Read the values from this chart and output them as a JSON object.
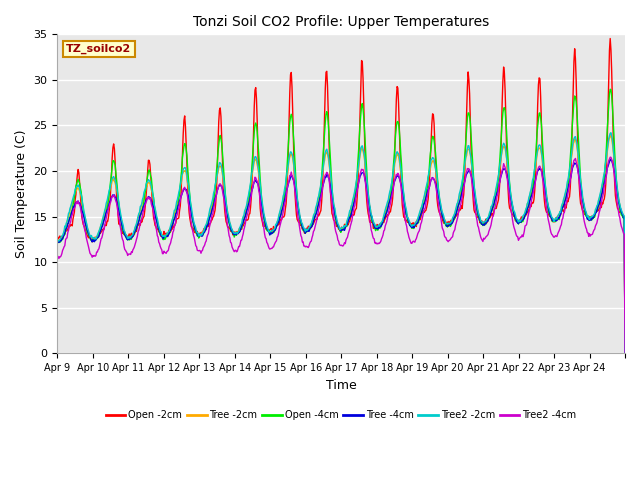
{
  "title": "Tonzi Soil CO2 Profile: Upper Temperatures",
  "xlabel": "Time",
  "ylabel": "Soil Temperature (C)",
  "ylim": [
    0,
    35
  ],
  "yticks": [
    0,
    5,
    10,
    15,
    20,
    25,
    30,
    35
  ],
  "annotation_text": "TZ_soilco2",
  "annotation_bg": "#ffffcc",
  "annotation_border": "#cc8800",
  "plot_bg": "#e8e8e8",
  "series": [
    {
      "label": "Open -2cm",
      "color": "#ff0000"
    },
    {
      "label": "Tree -2cm",
      "color": "#ffaa00"
    },
    {
      "label": "Open -4cm",
      "color": "#00ee00"
    },
    {
      "label": "Tree -4cm",
      "color": "#0000dd"
    },
    {
      "label": "Tree2 -2cm",
      "color": "#00cccc"
    },
    {
      "label": "Tree2 -4cm",
      "color": "#cc00cc"
    }
  ],
  "xtick_labels": [
    "Apr 9",
    "Apr 10",
    "Apr 11",
    "Apr 12",
    "Apr 13",
    "Apr 14",
    "Apr 15",
    "Apr 16",
    "Apr 17",
    "Apr 18",
    "Apr 19",
    "Apr 20",
    "Apr 21",
    "Apr 22",
    "Apr 23",
    "Apr 24"
  ],
  "n_days": 16,
  "ppd": 48
}
